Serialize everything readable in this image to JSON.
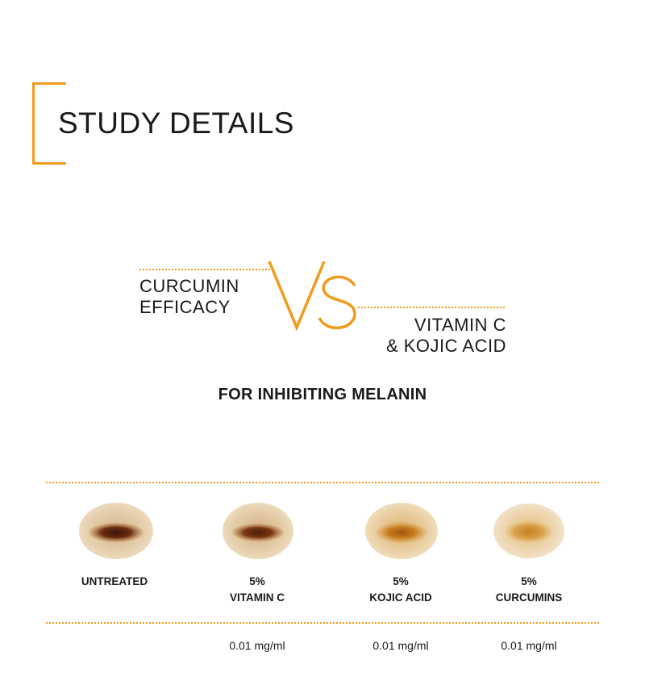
{
  "header": {
    "title": "STUDY DETAILS"
  },
  "comparison": {
    "left_line1": "CURCUMIN",
    "left_line2": "EFFICACY",
    "vs_text": "VS",
    "right_line1": "VITAMIN C",
    "right_line2": "& KOJIC ACID"
  },
  "subtitle": "FOR INHIBITING MELANIN",
  "samples": [
    {
      "label_line1": "UNTREATED",
      "label_line2": "",
      "concentration": ""
    },
    {
      "label_line1": "5%",
      "label_line2": "VITAMIN C",
      "concentration": "0.01 mg/ml"
    },
    {
      "label_line1": "5%",
      "label_line2": "KOJIC ACID",
      "concentration": "0.01 mg/ml"
    },
    {
      "label_line1": "5%",
      "label_line2": "CURCUMINS",
      "concentration": "0.01 mg/ml"
    }
  ],
  "colors": {
    "accent": "#f39a1c",
    "text": "#1a1a1a"
  }
}
